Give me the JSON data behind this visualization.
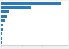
{
  "values": [
    580,
    290,
    75,
    52,
    32,
    16,
    11,
    9,
    7,
    5
  ],
  "bar_color": "#2b7bba",
  "background_color": "#f0f0f0",
  "plot_background": "#ffffff",
  "grid_color": "#ffffff",
  "xlim": [
    0,
    650
  ],
  "bar_height": 0.6,
  "figsize": [
    1.0,
    0.71
  ],
  "dpi": 100,
  "xticks": [
    0,
    200,
    400,
    600
  ]
}
